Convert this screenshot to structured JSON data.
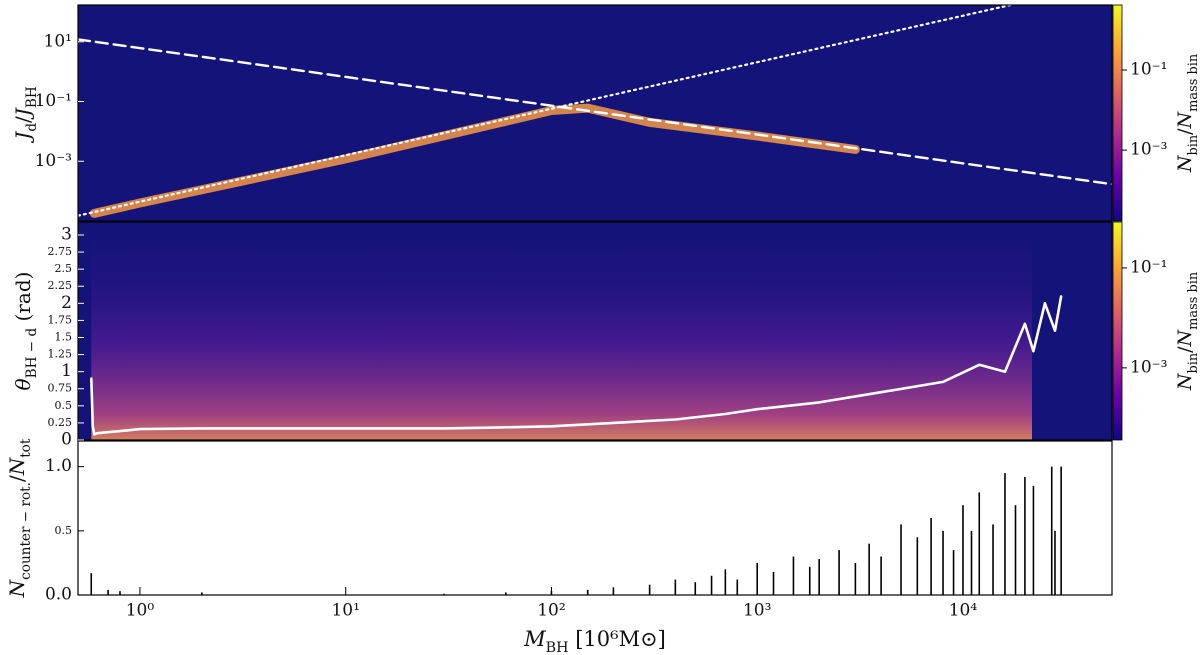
{
  "chart_data": [
    {
      "type": "heatmap",
      "background": "#14137a",
      "xscale": "log",
      "yscale": "log",
      "xlim": [
        0.5,
        53000
      ],
      "ylim": [
        1e-05,
        170
      ],
      "yticks": [
        {
          "value": 10,
          "label": "10¹"
        },
        {
          "value": 0.1,
          "label": "10⁻¹"
        },
        {
          "value": 0.001,
          "label": "10⁻³"
        }
      ],
      "ylabel": [
        {
          "text": "J",
          "italic": true
        },
        {
          "text": "d",
          "sub": true
        },
        {
          "text": "/"
        },
        {
          "text": "J",
          "italic": true
        },
        {
          "text": "BH",
          "sub": true
        }
      ],
      "series": [
        {
          "style": "band",
          "color": "#f59a45",
          "x": [
            0.6,
            1,
            10,
            100,
            150,
            300,
            1000,
            3000
          ],
          "values": [
            1.8e-05,
            4e-05,
            0.0012,
            0.05,
            0.06,
            0.02,
            0.007,
            0.0025
          ]
        },
        {
          "style": "dashed",
          "color": "#ffffff",
          "x": [
            0.5,
            53000
          ],
          "values": [
            12,
            0.00017
          ]
        },
        {
          "style": "dotted",
          "color": "#ffffff",
          "x": [
            0.5,
            17000
          ],
          "values": [
            1.5e-05,
            170
          ]
        }
      ],
      "colorbar": {
        "lim": [
          1.7e-05,
          4.2
        ],
        "ticks": [
          {
            "value": 0.1,
            "label": "10⁻¹"
          },
          {
            "value": 0.001,
            "label": "10⁻³"
          }
        ],
        "colors": [
          "#0d0887",
          "#6a00a8",
          "#b12a90",
          "#e16462",
          "#fca636",
          "#f0f921"
        ],
        "label": [
          {
            "text": "N",
            "italic": true
          },
          {
            "text": "bin",
            "sub": true
          },
          {
            "text": "/"
          },
          {
            "text": "N",
            "italic": true
          },
          {
            "text": "mass bin",
            "sub": true
          }
        ]
      }
    },
    {
      "type": "heatmap",
      "background": "#14137a",
      "xscale": "log",
      "yscale": "linear",
      "xlim": [
        0.5,
        53000
      ],
      "ylim": [
        0,
        3.19
      ],
      "yticks": [
        0,
        0.25,
        0.5,
        0.75,
        1,
        1.25,
        1.5,
        1.75,
        2,
        2.25,
        2.5,
        2.75,
        3
      ],
      "ylabel": [
        {
          "text": "θ",
          "italic": true
        },
        {
          "text": "BH − d",
          "sub": true
        },
        {
          "text": " (rad)"
        }
      ],
      "series": [
        {
          "style": "solid",
          "color": "#ffffff",
          "x": [
            0.58,
            0.59,
            0.6,
            0.62,
            0.8,
            1,
            2,
            5,
            10,
            30,
            50,
            100,
            200,
            400,
            700,
            1000,
            2000,
            4000,
            8000,
            12000,
            16000,
            20000,
            22000,
            25000,
            28000,
            30000
          ],
          "values": [
            0.9,
            0.2,
            0.08,
            0.1,
            0.13,
            0.16,
            0.17,
            0.17,
            0.17,
            0.17,
            0.18,
            0.2,
            0.25,
            0.3,
            0.38,
            0.45,
            0.55,
            0.7,
            0.85,
            1.1,
            1.0,
            1.7,
            1.3,
            2.0,
            1.6,
            2.1
          ]
        }
      ],
      "colorbar": {
        "lim": [
          3.6e-05,
          0.83
        ],
        "ticks": [
          {
            "value": 0.1,
            "label": "10⁻¹"
          },
          {
            "value": 0.001,
            "label": "10⁻³"
          }
        ],
        "colors": [
          "#0d0887",
          "#6a00a8",
          "#b12a90",
          "#e16462",
          "#fca636",
          "#f0f921"
        ],
        "label": [
          {
            "text": "N",
            "italic": true
          },
          {
            "text": "bin",
            "sub": true
          },
          {
            "text": "/"
          },
          {
            "text": "N",
            "italic": true
          },
          {
            "text": "mass bin",
            "sub": true
          }
        ]
      }
    },
    {
      "type": "bar",
      "background": "#ffffff",
      "color": "#000000",
      "xscale": "log",
      "yscale": "linear",
      "xlim": [
        0.5,
        53000
      ],
      "ylim": [
        0,
        1.2
      ],
      "yticks": [
        {
          "value": 0,
          "label": "0.0"
        },
        0.5,
        {
          "value": 1,
          "label": "1.0"
        }
      ],
      "xticks": [
        {
          "value": 1,
          "label": "10⁰"
        },
        {
          "value": 10,
          "label": "10¹"
        },
        {
          "value": 100,
          "label": "10²"
        },
        {
          "value": 1000,
          "label": "10³"
        },
        {
          "value": 10000,
          "label": "10⁴"
        }
      ],
      "ylabel": [
        {
          "text": "N",
          "italic": true
        },
        {
          "text": "counter − rot.",
          "sub": true
        },
        {
          "text": "/"
        },
        {
          "text": "N",
          "italic": true
        },
        {
          "text": "tot",
          "sub": true
        }
      ],
      "xlabel": [
        {
          "text": "M",
          "italic": true
        },
        {
          "text": "BH",
          "sub": true
        },
        {
          "text": " [10⁶M⊙]"
        }
      ],
      "series": [
        {
          "style": "bars",
          "color": "#000000",
          "x": [
            0.58,
            0.7,
            0.8,
            2,
            30,
            60,
            100,
            150,
            200,
            300,
            400,
            500,
            600,
            700,
            800,
            1000,
            1200,
            1500,
            1800,
            2000,
            2500,
            3000,
            3500,
            4000,
            5000,
            6000,
            7000,
            8000,
            9000,
            10000,
            11000,
            12000,
            14000,
            16000,
            18000,
            20000,
            22000,
            27000,
            28000,
            30000
          ],
          "values": [
            0.17,
            0.04,
            0.03,
            0.02,
            0.01,
            0.02,
            0.03,
            0.04,
            0.06,
            0.08,
            0.12,
            0.1,
            0.15,
            0.2,
            0.12,
            0.25,
            0.18,
            0.3,
            0.22,
            0.28,
            0.35,
            0.25,
            0.4,
            0.3,
            0.55,
            0.45,
            0.6,
            0.5,
            0.35,
            0.7,
            0.5,
            0.8,
            0.55,
            0.95,
            0.7,
            0.92,
            0.85,
            1.0,
            0.5,
            1.0
          ]
        }
      ]
    }
  ]
}
